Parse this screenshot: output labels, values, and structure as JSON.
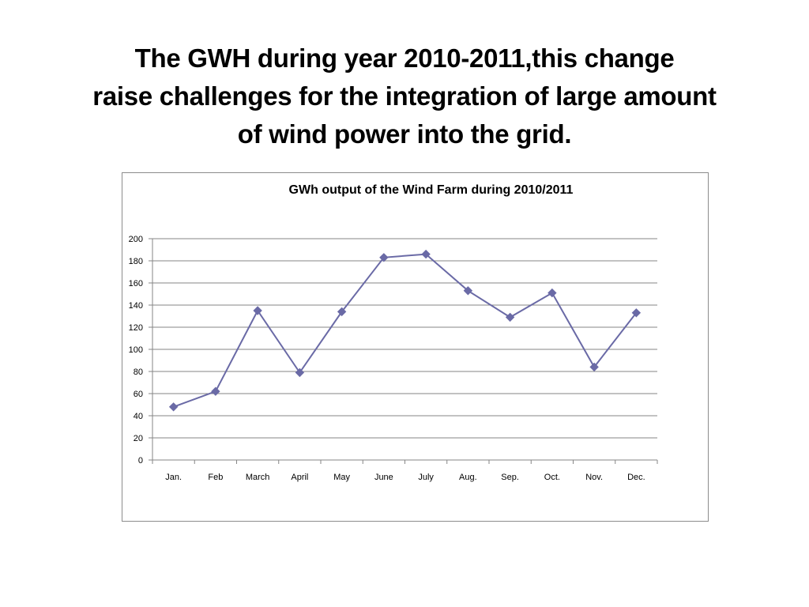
{
  "slide": {
    "title_lines": [
      "The GWH during year 2010-2011,this change",
      "raise challenges for the integration of large amount",
      "of wind power into the grid."
    ]
  },
  "chart_data": {
    "type": "line",
    "title": "GWh output of the Wind Farm during 2010/2011",
    "xlabel": "",
    "ylabel": "",
    "categories": [
      "Jan.",
      "Feb",
      "March",
      "April",
      "May",
      "June",
      "July",
      "Aug.",
      "Sep.",
      "Oct.",
      "Nov.",
      "Dec."
    ],
    "series": [
      {
        "values": [
          48,
          62,
          135,
          79,
          134,
          183,
          186,
          153,
          129,
          151,
          84,
          133
        ]
      }
    ],
    "ylim": [
      0,
      200
    ],
    "yticks": [
      0,
      20,
      40,
      60,
      80,
      100,
      120,
      140,
      160,
      180,
      200
    ],
    "grid": true,
    "legend": "none",
    "colors": {
      "line": "#6a6aa6",
      "marker": "#6a6aa6",
      "grid": "#868686"
    }
  }
}
